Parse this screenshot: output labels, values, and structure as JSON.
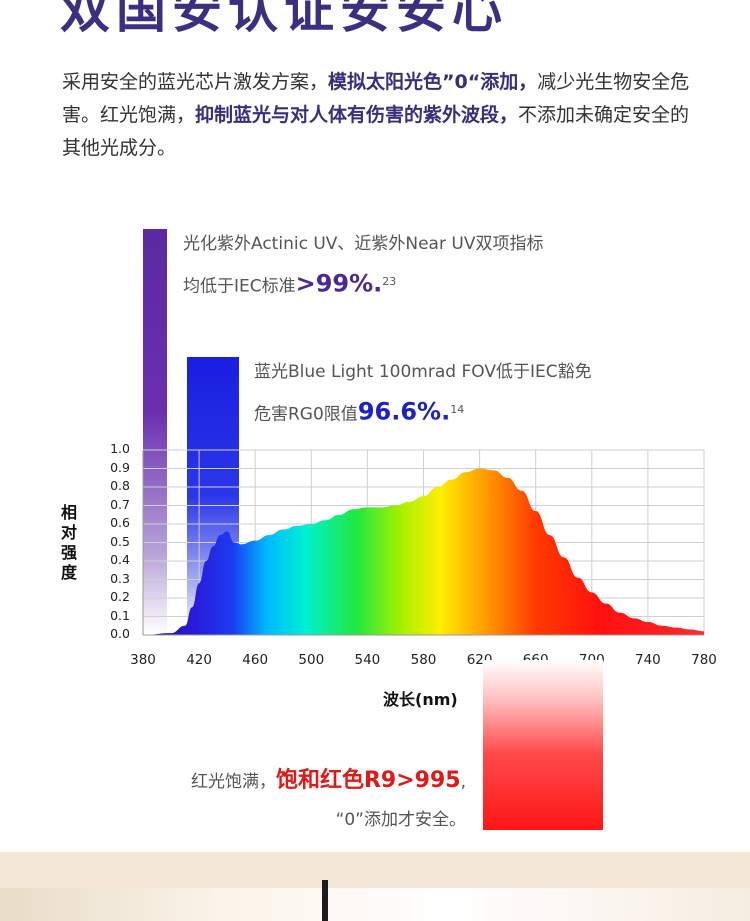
{
  "header": {
    "title": "双国安认证安安心"
  },
  "intro": {
    "part1": "采用安全的蓝光芯片激发方案，",
    "hl1": "模拟太阳光色”0“添加，",
    "part2": "减少光生物安全危害。红光饱满，",
    "hl2": "抑制蓝光与对人体有伤害的紫外波段，",
    "part3": "不添加未确定安全的其他光成分。"
  },
  "annotations": {
    "uv": {
      "line1": "光化紫外Actinic UV、近紫外Near UV双项指标",
      "line2_prefix": "均低于IEC标准",
      "value": ">99%.",
      "sup": "23"
    },
    "blue": {
      "line1": "蓝光Blue Light 100mrad FOV低于IEC豁免",
      "line2_prefix": "危害RG0限值",
      "value": "96.6%.",
      "sup": "14"
    },
    "red": {
      "line1_prefix": "红光饱满，",
      "value": "饱和红色R9>995",
      "line1_suffix": ",",
      "line2": "“0”添加才安全。"
    }
  },
  "colors": {
    "uv_bar": "#5a2aa0",
    "blue_bar": "#1a1ee0",
    "red_bar": "#ff1515",
    "title": "#3b2f80"
  },
  "chart_data": {
    "type": "area",
    "xlabel": "波长(nm)",
    "ylabel": "相对强度",
    "xlim": [
      380,
      780
    ],
    "ylim": [
      0,
      1.0
    ],
    "grid": true,
    "x_ticks": [
      "380",
      "420",
      "460",
      "500",
      "540",
      "580",
      "620",
      "660",
      "700",
      "740",
      "780"
    ],
    "y_ticks": [
      "0.0",
      "0.1",
      "0.2",
      "0.3",
      "0.4",
      "0.5",
      "0.6",
      "0.7",
      "0.8",
      "0.9",
      "1.0"
    ],
    "series": [
      {
        "x": [
          380,
          400,
          410,
          415,
          420,
          425,
          430,
          435,
          440,
          445,
          450,
          460,
          470,
          480,
          490,
          500,
          510,
          520,
          530,
          540,
          550,
          560,
          570,
          580,
          590,
          600,
          610,
          620,
          630,
          640,
          650,
          660,
          670,
          680,
          690,
          700,
          710,
          720,
          730,
          740,
          750,
          760,
          770,
          780
        ],
        "values": [
          0.0,
          0.01,
          0.05,
          0.15,
          0.28,
          0.4,
          0.48,
          0.54,
          0.56,
          0.5,
          0.49,
          0.51,
          0.54,
          0.57,
          0.59,
          0.6,
          0.62,
          0.65,
          0.68,
          0.69,
          0.69,
          0.7,
          0.72,
          0.75,
          0.8,
          0.84,
          0.88,
          0.9,
          0.89,
          0.85,
          0.78,
          0.67,
          0.54,
          0.42,
          0.31,
          0.23,
          0.17,
          0.12,
          0.09,
          0.07,
          0.05,
          0.04,
          0.03,
          0.02
        ]
      }
    ]
  }
}
